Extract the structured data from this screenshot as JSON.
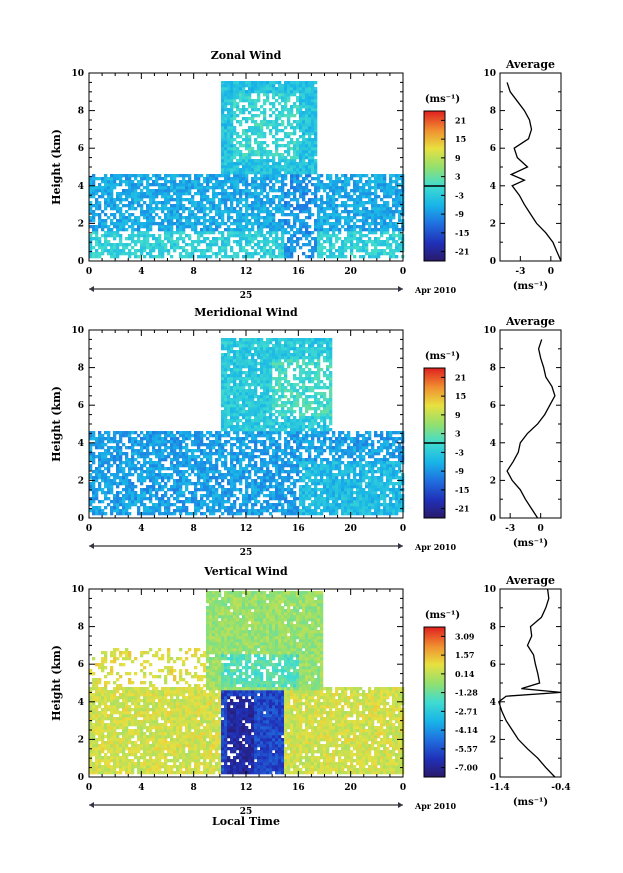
{
  "chart_data": [
    {
      "type": "heatmap",
      "title": "Zonal Wind",
      "ylabel": "Height (km)",
      "xlim": [
        0,
        24
      ],
      "ylim": [
        0,
        10
      ],
      "xticks": [
        "0",
        "4",
        "8",
        "12",
        "16",
        "20",
        "0"
      ],
      "yticks": [
        "0",
        "2",
        "4",
        "6",
        "8",
        "10"
      ],
      "day_label": "25",
      "month_label": "Apr 2010",
      "colorbar": {
        "label": "(ms⁻¹)",
        "ticks": [
          "21",
          "15",
          "9",
          "3",
          "-3",
          "-9",
          "-15",
          "-21"
        ],
        "range": [
          -24,
          24
        ]
      },
      "base_value": -6,
      "segments": [
        {
          "x0": 0,
          "x1": 24,
          "y0": 0.2,
          "y1": 4.6,
          "value": -7,
          "density": 0.78
        },
        {
          "x0": 0,
          "x1": 24,
          "y0": 0.2,
          "y1": 1.6,
          "value": -2,
          "density": 0.7
        },
        {
          "x0": 10,
          "x1": 17.5,
          "y0": 4.6,
          "y1": 9.5,
          "value": -4,
          "density": 0.96
        },
        {
          "x0": 11,
          "x1": 16,
          "y0": 5.5,
          "y1": 9,
          "value": -1,
          "density": 0.6
        },
        {
          "x0": 15,
          "x1": 17.5,
          "y0": 0.2,
          "y1": 4.6,
          "value": -9,
          "density": 0.6
        }
      ],
      "profile": {
        "title": "Average",
        "xlabel": "(ms⁻¹)",
        "xlim": [
          -5,
          1
        ],
        "xticks": [
          "-3",
          "0"
        ],
        "xtick_values": [
          -3,
          0
        ],
        "heights": [
          0,
          0.5,
          1,
          1.5,
          2,
          2.5,
          3,
          3.5,
          4,
          4.3,
          4.6,
          5,
          5.5,
          6,
          6.5,
          7,
          7.5,
          8,
          8.5,
          9,
          9.5
        ],
        "values": [
          1.0,
          0.6,
          0.2,
          -0.5,
          -1.4,
          -2.0,
          -2.6,
          -3.1,
          -3.8,
          -2.6,
          -3.9,
          -2.3,
          -3.3,
          -3.6,
          -2.2,
          -1.9,
          -2.1,
          -2.6,
          -3.3,
          -4.0,
          -4.3
        ]
      }
    },
    {
      "type": "heatmap",
      "title": "Meridional Wind",
      "ylabel": "Height (km)",
      "xlim": [
        0,
        24
      ],
      "ylim": [
        0,
        10
      ],
      "xticks": [
        "0",
        "4",
        "8",
        "12",
        "16",
        "20",
        "0"
      ],
      "yticks": [
        "0",
        "2",
        "4",
        "6",
        "8",
        "10"
      ],
      "day_label": "25",
      "month_label": "Apr 2010",
      "colorbar": {
        "label": "(ms⁻¹)",
        "ticks": [
          "21",
          "15",
          "9",
          "3",
          "-3",
          "-9",
          "-15",
          "-21"
        ],
        "range": [
          -24,
          24
        ]
      },
      "base_value": -7,
      "segments": [
        {
          "x0": 0,
          "x1": 24,
          "y0": 0.2,
          "y1": 4.6,
          "value": -8,
          "density": 0.72
        },
        {
          "x0": 10,
          "x1": 18.5,
          "y0": 4.6,
          "y1": 9.5,
          "value": -3,
          "density": 0.92
        },
        {
          "x0": 14,
          "x1": 18.5,
          "y0": 5.5,
          "y1": 8.5,
          "value": 0,
          "density": 0.7
        },
        {
          "x0": 16,
          "x1": 24,
          "y0": 0.2,
          "y1": 3,
          "value": -5,
          "density": 0.85
        }
      ],
      "profile": {
        "title": "Average",
        "xlabel": "(ms⁻¹)",
        "xlim": [
          -4,
          2
        ],
        "xticks": [
          "-3",
          "0"
        ],
        "xtick_values": [
          -3,
          0
        ],
        "heights": [
          0,
          0.5,
          1,
          1.5,
          2,
          2.5,
          3,
          3.5,
          4,
          4.5,
          5,
          5.5,
          6,
          6.5,
          7,
          7.5,
          8,
          8.5,
          9,
          9.5
        ],
        "values": [
          -0.3,
          -0.9,
          -1.5,
          -2.0,
          -2.8,
          -3.3,
          -2.7,
          -2.2,
          -2.0,
          -1.3,
          -0.3,
          0.4,
          0.9,
          1.4,
          1.1,
          0.5,
          0.3,
          0.0,
          -0.2,
          0.1
        ]
      }
    },
    {
      "type": "heatmap",
      "title": "Vertical Wind",
      "ylabel": "Height (km)",
      "xlabel": "Local Time",
      "xlim": [
        0,
        24
      ],
      "ylim": [
        0,
        10
      ],
      "xticks": [
        "0",
        "4",
        "8",
        "12",
        "16",
        "20",
        "0"
      ],
      "yticks": [
        "0",
        "2",
        "4",
        "6",
        "8",
        "10"
      ],
      "day_label": "25",
      "month_label": "Apr 2010",
      "colorbar": {
        "label": "(ms⁻¹)",
        "ticks": [
          "3.09",
          "1.57",
          "0.14",
          "-1.28",
          "-2.71",
          "-4.14",
          "-5.57",
          "-7.00"
        ],
        "range": [
          -8,
          4
        ]
      },
      "base_value": 0.3,
      "segments": [
        {
          "x0": 0,
          "x1": 24,
          "y0": 0.2,
          "y1": 4.8,
          "value": 0.6,
          "density": 0.9
        },
        {
          "x0": 0,
          "x1": 10,
          "y0": 4.8,
          "y1": 6.8,
          "value": 0.8,
          "density": 0.3
        },
        {
          "x0": 9,
          "x1": 18,
          "y0": 4.6,
          "y1": 10,
          "value": -0.4,
          "density": 0.97
        },
        {
          "x0": 10,
          "x1": 16,
          "y0": 4.8,
          "y1": 6.5,
          "value": -1.6,
          "density": 0.8
        },
        {
          "x0": 10,
          "x1": 15,
          "y0": 0.2,
          "y1": 4.6,
          "value": -6.0,
          "density": 0.95
        },
        {
          "x0": 10.5,
          "x1": 12.5,
          "y0": 0.2,
          "y1": 4.3,
          "value": -7.0,
          "density": 0.9
        }
      ],
      "profile": {
        "title": "Average",
        "xlabel": "(ms⁻¹)",
        "xlim": [
          -1.4,
          -0.4
        ],
        "xticks": [
          "-1.4",
          "-0.4"
        ],
        "xtick_values": [
          -1.4,
          -0.4
        ],
        "heights": [
          0,
          0.5,
          1,
          1.5,
          2,
          2.5,
          3,
          3.5,
          4,
          4.3,
          4.5,
          4.7,
          5,
          5.5,
          6,
          6.5,
          7,
          7.5,
          8,
          8.5,
          9,
          9.5,
          10
        ],
        "values": [
          -0.5,
          -0.65,
          -0.78,
          -0.95,
          -1.1,
          -1.2,
          -1.3,
          -1.37,
          -1.42,
          -1.3,
          -0.4,
          -1.05,
          -0.75,
          -0.78,
          -0.82,
          -0.85,
          -0.95,
          -0.88,
          -0.9,
          -0.72,
          -0.65,
          -0.6,
          -0.62
        ]
      }
    }
  ]
}
